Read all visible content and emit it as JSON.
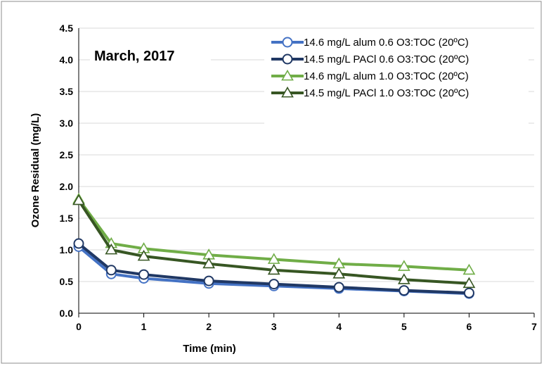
{
  "chart_data": {
    "type": "line",
    "title": "March, 2017",
    "xlabel": "Time (min)",
    "ylabel": "Ozone Residual (mg/L)",
    "xlim": [
      0,
      7
    ],
    "ylim": [
      0,
      4.5
    ],
    "xticks": [
      0,
      1,
      2,
      3,
      4,
      5,
      6,
      7
    ],
    "yticks": [
      0.0,
      0.5,
      1.0,
      1.5,
      2.0,
      2.5,
      3.0,
      3.5,
      4.0,
      4.5
    ],
    "grid": "horizontal",
    "legend_position": "top-right",
    "series": [
      {
        "name": "14.6 mg/L alum 0.6 O3:TOC (20ºC)",
        "color": "#4472C4",
        "marker": "circle",
        "x": [
          0,
          0.5,
          1,
          2,
          3,
          4,
          5,
          6
        ],
        "y": [
          1.05,
          0.62,
          0.55,
          0.47,
          0.43,
          0.39,
          0.35,
          0.31
        ]
      },
      {
        "name": "14.5 mg/L PACl 0.6 O3:TOC (20ºC)",
        "color": "#203864",
        "marker": "circle",
        "x": [
          0,
          0.5,
          1,
          2,
          3,
          4,
          5,
          6
        ],
        "y": [
          1.1,
          0.68,
          0.61,
          0.51,
          0.46,
          0.41,
          0.36,
          0.32
        ]
      },
      {
        "name": "14.6 mg/L alum 1.0 O3:TOC (20ºC)",
        "color": "#70AD47",
        "marker": "triangle",
        "x": [
          0,
          0.5,
          1,
          2,
          3,
          4,
          5,
          6
        ],
        "y": [
          1.8,
          1.1,
          1.02,
          0.92,
          0.85,
          0.78,
          0.74,
          0.68
        ]
      },
      {
        "name": "14.5 mg/L PACl 1.0 O3:TOC (20ºC)",
        "color": "#375623",
        "marker": "triangle",
        "x": [
          0,
          0.5,
          1,
          2,
          3,
          4,
          5,
          6
        ],
        "y": [
          1.78,
          1.0,
          0.9,
          0.78,
          0.68,
          0.62,
          0.53,
          0.47
        ]
      }
    ]
  }
}
